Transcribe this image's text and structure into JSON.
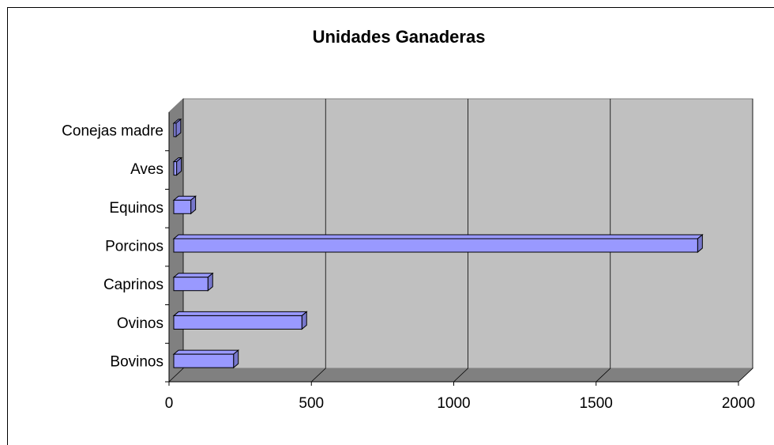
{
  "chart_data": {
    "type": "bar",
    "orientation": "horizontal",
    "title": "Unidades Ganaderas",
    "categories": [
      "Bovinos",
      "Ovinos",
      "Caprinos",
      "Porcinos",
      "Equinos",
      "Aves",
      "Conejas madre"
    ],
    "values": [
      210,
      450,
      120,
      1840,
      60,
      10,
      8
    ],
    "color": "#9999ff",
    "xlim": [
      0,
      2000
    ],
    "xticks": [
      0,
      500,
      1000,
      1500,
      2000
    ],
    "grid": true
  }
}
